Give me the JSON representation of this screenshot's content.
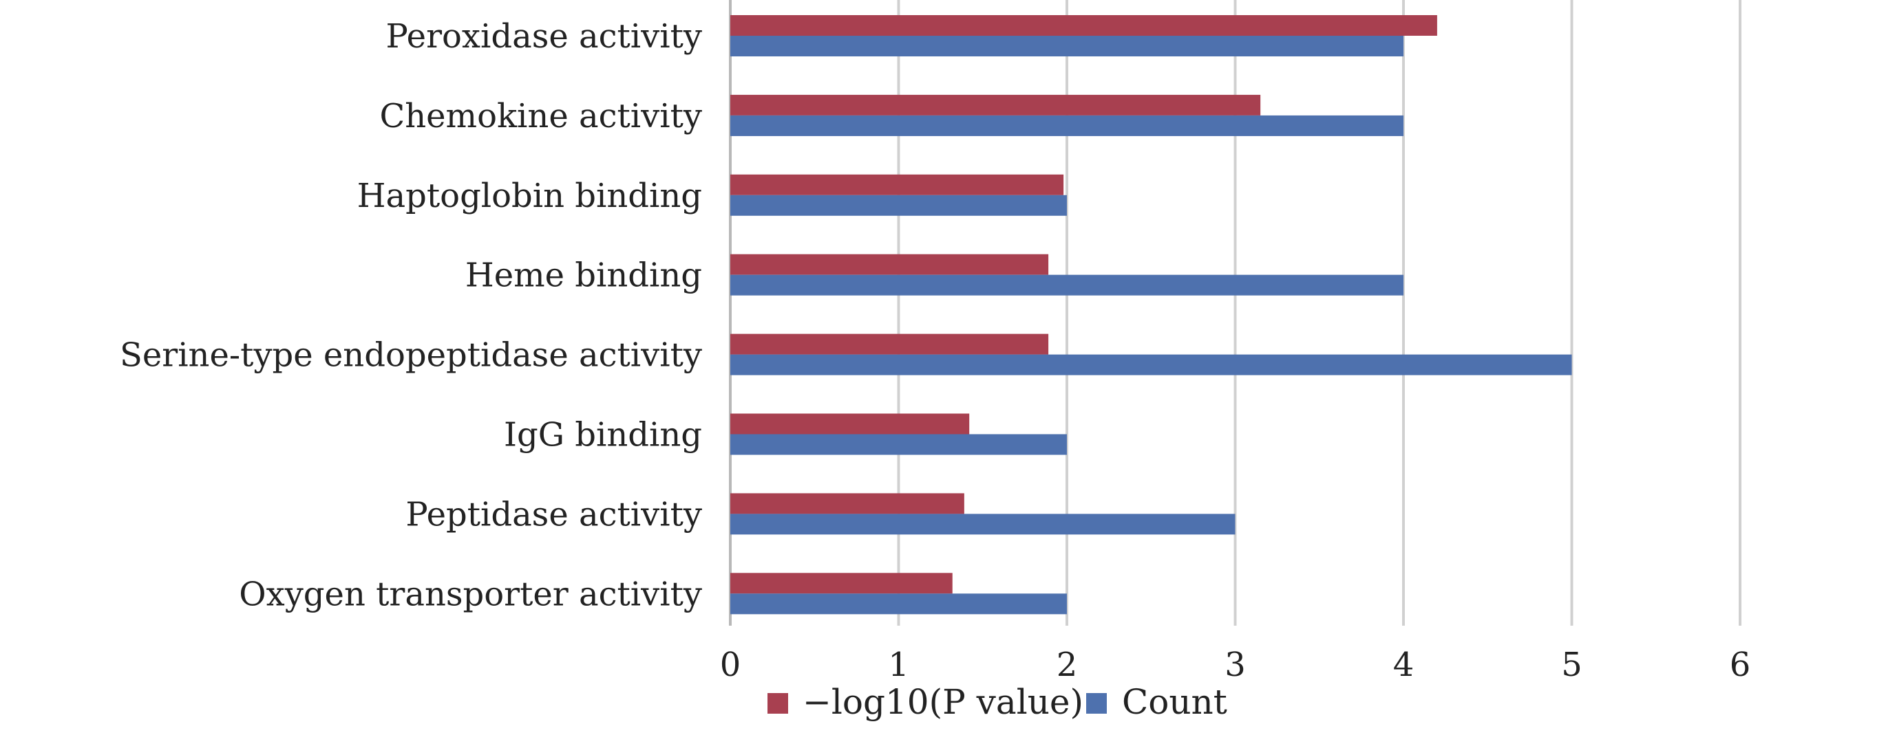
{
  "chart_data": {
    "type": "bar",
    "orientation": "horizontal",
    "categories": [
      "Peroxidase activity",
      "Chemokine activity",
      "Haptoglobin binding",
      "Heme binding",
      "Serine-type endopeptidase activity",
      "IgG binding",
      "Peptidase activity",
      "Oxygen transporter activity"
    ],
    "series": [
      {
        "name": "−log10(P value)",
        "color": "#a84050",
        "values": [
          4.2,
          3.15,
          1.98,
          1.89,
          1.89,
          1.42,
          1.39,
          1.32
        ]
      },
      {
        "name": "Count",
        "color": "#4e71ae",
        "values": [
          4,
          4,
          2,
          4,
          5,
          2,
          3,
          2
        ]
      }
    ],
    "xlim": [
      0,
      6
    ],
    "xticks": [
      "0",
      "1",
      "2",
      "3",
      "4",
      "5",
      "6"
    ],
    "grid": "vertical",
    "gridline_color": "#d0d0d0",
    "legend_position": "bottom"
  }
}
